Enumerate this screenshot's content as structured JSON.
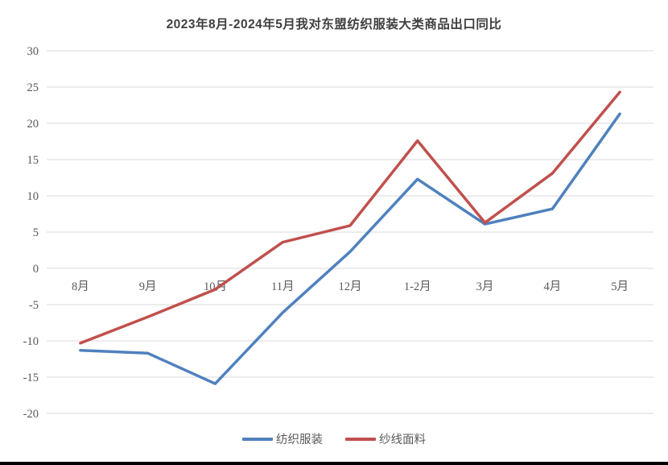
{
  "chart_data": {
    "type": "line",
    "title": "2023年8月-2024年5月我对东盟纺织服装大类商品出口同比",
    "categories": [
      "8月",
      "9月",
      "10月",
      "11月",
      "12月",
      "1-2月",
      "3月",
      "4月",
      "5月"
    ],
    "series": [
      {
        "name": "纺织服装",
        "color": "#4F81BD",
        "values": [
          -11.3,
          -11.7,
          -15.9,
          -6.1,
          2.3,
          12.3,
          6.1,
          8.2,
          21.3
        ]
      },
      {
        "name": "纱线面料",
        "color": "#C0504D",
        "values": [
          -10.3,
          -6.7,
          -2.9,
          3.6,
          5.9,
          17.6,
          6.3,
          13.1,
          24.3
        ]
      }
    ],
    "y_ticks": [
      30,
      25,
      20,
      15,
      10,
      5,
      0,
      -5,
      -10,
      -15,
      -20
    ],
    "ylim": [
      -20,
      30
    ],
    "xlabel": "",
    "ylabel": "",
    "grid": "horizontal-only",
    "legend_position": "bottom",
    "gridline_color": "#d9d9d9",
    "tick_label_color": "#595959"
  }
}
